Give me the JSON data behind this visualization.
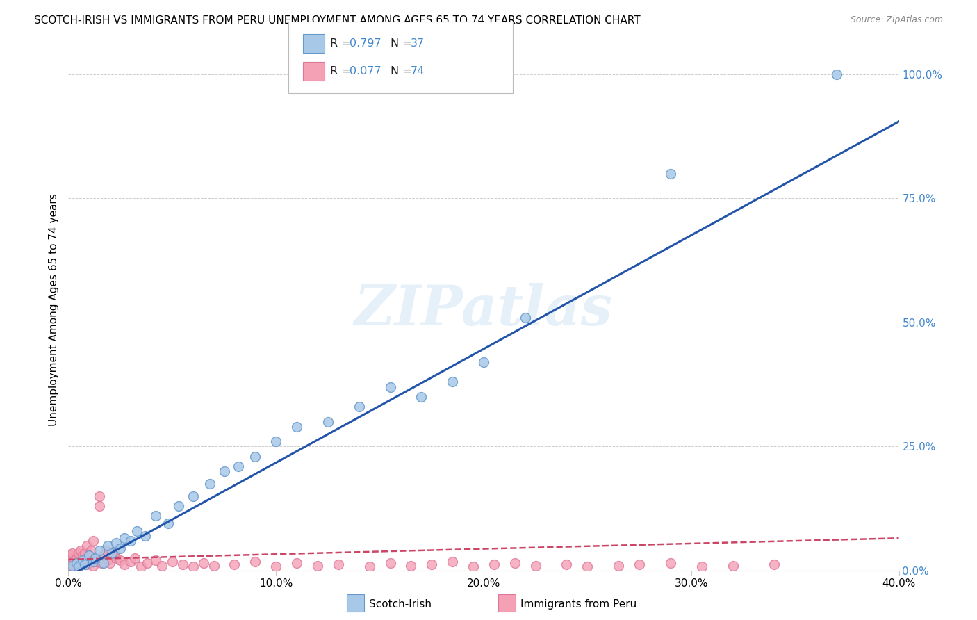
{
  "title": "SCOTCH-IRISH VS IMMIGRANTS FROM PERU UNEMPLOYMENT AMONG AGES 65 TO 74 YEARS CORRELATION CHART",
  "source": "Source: ZipAtlas.com",
  "ylabel": "Unemployment Among Ages 65 to 74 years",
  "xlim": [
    0.0,
    0.4
  ],
  "ylim": [
    0.0,
    1.05
  ],
  "xtick_vals": [
    0.0,
    0.1,
    0.2,
    0.3,
    0.4
  ],
  "xtick_labels": [
    "0.0%",
    "10.0%",
    "20.0%",
    "30.0%",
    "40.0%"
  ],
  "ytick_vals": [
    0.0,
    0.25,
    0.5,
    0.75,
    1.0
  ],
  "ytick_labels_right": [
    "0.0%",
    "25.0%",
    "50.0%",
    "75.0%",
    "100.0%"
  ],
  "grid_color": "#cccccc",
  "watermark": "ZIPatlas",
  "scotch_color": "#a8c8e8",
  "scotch_edge": "#6699cc",
  "peru_color": "#f4a0b5",
  "peru_edge": "#dd7799",
  "blue_line_color": "#2255aa",
  "pink_line_color": "#cc4466",
  "R_scotch": 0.797,
  "N_scotch": 37,
  "R_peru": 0.077,
  "N_peru": 74,
  "label_scotch": "Scotch-Irish",
  "label_peru": "Immigrants from Peru",
  "accent_color": "#4488cc",
  "scotch_x": [
    0.002,
    0.004,
    0.005,
    0.007,
    0.008,
    0.01,
    0.012,
    0.013,
    0.015,
    0.017,
    0.019,
    0.021,
    0.023,
    0.025,
    0.027,
    0.03,
    0.033,
    0.037,
    0.042,
    0.048,
    0.053,
    0.06,
    0.068,
    0.075,
    0.082,
    0.09,
    0.1,
    0.11,
    0.125,
    0.14,
    0.155,
    0.17,
    0.185,
    0.2,
    0.22,
    0.29,
    0.37
  ],
  "scotch_y": [
    0.01,
    0.015,
    0.008,
    0.02,
    0.012,
    0.03,
    0.018,
    0.025,
    0.04,
    0.015,
    0.05,
    0.035,
    0.055,
    0.045,
    0.065,
    0.06,
    0.08,
    0.07,
    0.11,
    0.095,
    0.13,
    0.15,
    0.175,
    0.2,
    0.21,
    0.23,
    0.26,
    0.29,
    0.3,
    0.33,
    0.37,
    0.35,
    0.38,
    0.42,
    0.51,
    0.8,
    1.0
  ],
  "peru_x": [
    0.001,
    0.001,
    0.001,
    0.002,
    0.002,
    0.002,
    0.003,
    0.003,
    0.004,
    0.004,
    0.005,
    0.005,
    0.005,
    0.006,
    0.006,
    0.007,
    0.007,
    0.008,
    0.008,
    0.009,
    0.009,
    0.01,
    0.01,
    0.011,
    0.011,
    0.012,
    0.012,
    0.013,
    0.014,
    0.015,
    0.015,
    0.016,
    0.017,
    0.018,
    0.019,
    0.02,
    0.022,
    0.023,
    0.025,
    0.027,
    0.03,
    0.032,
    0.035,
    0.038,
    0.042,
    0.045,
    0.05,
    0.055,
    0.06,
    0.065,
    0.07,
    0.08,
    0.09,
    0.1,
    0.11,
    0.12,
    0.13,
    0.145,
    0.155,
    0.165,
    0.175,
    0.185,
    0.195,
    0.205,
    0.215,
    0.225,
    0.24,
    0.25,
    0.265,
    0.275,
    0.29,
    0.305,
    0.32,
    0.34
  ],
  "peru_y": [
    0.01,
    0.02,
    0.03,
    0.015,
    0.025,
    0.035,
    0.01,
    0.02,
    0.015,
    0.025,
    0.008,
    0.018,
    0.035,
    0.012,
    0.04,
    0.015,
    0.03,
    0.02,
    0.035,
    0.012,
    0.05,
    0.015,
    0.03,
    0.02,
    0.04,
    0.01,
    0.06,
    0.025,
    0.018,
    0.15,
    0.13,
    0.015,
    0.03,
    0.04,
    0.02,
    0.015,
    0.035,
    0.025,
    0.02,
    0.012,
    0.018,
    0.025,
    0.008,
    0.015,
    0.02,
    0.01,
    0.018,
    0.012,
    0.008,
    0.015,
    0.01,
    0.012,
    0.018,
    0.008,
    0.015,
    0.01,
    0.012,
    0.008,
    0.015,
    0.01,
    0.012,
    0.018,
    0.008,
    0.012,
    0.015,
    0.01,
    0.012,
    0.008,
    0.01,
    0.012,
    0.015,
    0.008,
    0.01,
    0.012
  ],
  "blue_line_x": [
    0.0,
    0.4
  ],
  "blue_line_y": [
    -0.012,
    0.905
  ],
  "pink_line_x": [
    0.0,
    0.4
  ],
  "pink_line_y": [
    0.022,
    0.065
  ]
}
